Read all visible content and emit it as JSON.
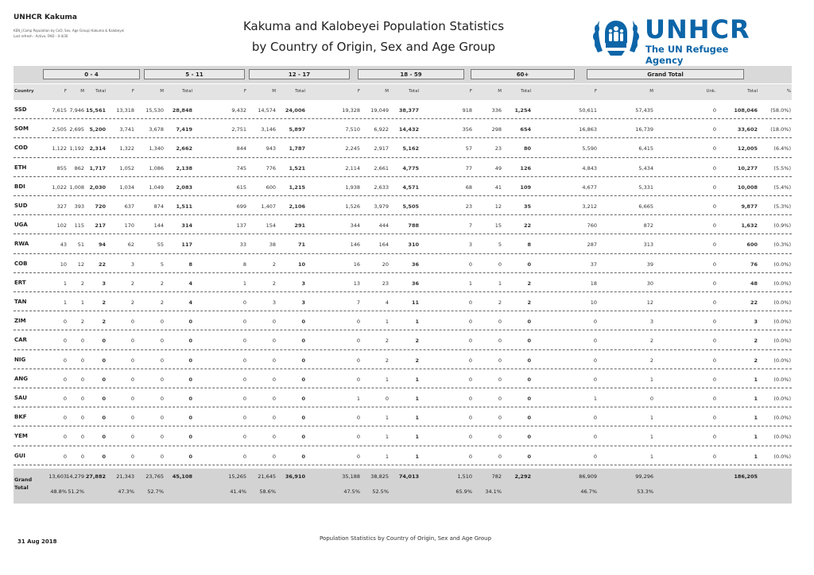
{
  "header": {
    "office": "UNHCR Kakuma",
    "sub_line1": "KEN_(Camp Population by CoO, Sex, Age Group) Kakuma & Kalobeyei",
    "sub_line2": "Last refresh - Active, FAID - 0-4/30",
    "title_line1": "Kakuma and Kalobeyei Population Statistics",
    "title_line2": "by Country of Origin, Sex and Age Group"
  },
  "logo": {
    "word": "UNHCR",
    "tagline": "The UN Refugee Agency",
    "icon": "unhcr-emblem-icon"
  },
  "groups": [
    "0 - 4",
    "5 - 11",
    "12 - 17",
    "18 - 59",
    "60+",
    "Grand Total"
  ],
  "columns": {
    "country": "Country",
    "f": "F",
    "m": "M",
    "total": "Total",
    "unk": "Unk.",
    "pct": "%"
  },
  "rows": [
    {
      "c": "SSD",
      "v": [
        "7,615",
        "7,946",
        "15,561",
        "13,318",
        "15,530",
        "28,848",
        "9,432",
        "14,574",
        "24,006",
        "19,328",
        "19,049",
        "38,377",
        "918",
        "336",
        "1,254",
        "50,611",
        "57,435",
        "0",
        "108,046",
        "(58.0%)"
      ]
    },
    {
      "c": "SOM",
      "v": [
        "2,505",
        "2,695",
        "5,200",
        "3,741",
        "3,678",
        "7,419",
        "2,751",
        "3,146",
        "5,897",
        "7,510",
        "6,922",
        "14,432",
        "356",
        "298",
        "654",
        "16,863",
        "16,739",
        "0",
        "33,602",
        "(18.0%)"
      ]
    },
    {
      "c": "COD",
      "v": [
        "1,122",
        "1,192",
        "2,314",
        "1,322",
        "1,340",
        "2,662",
        "844",
        "943",
        "1,787",
        "2,245",
        "2,917",
        "5,162",
        "57",
        "23",
        "80",
        "5,590",
        "6,415",
        "0",
        "12,005",
        "(6.4%)"
      ]
    },
    {
      "c": "ETH",
      "v": [
        "855",
        "862",
        "1,717",
        "1,052",
        "1,086",
        "2,138",
        "745",
        "776",
        "1,521",
        "2,114",
        "2,661",
        "4,775",
        "77",
        "49",
        "126",
        "4,843",
        "5,434",
        "0",
        "10,277",
        "(5.5%)"
      ]
    },
    {
      "c": "BDI",
      "v": [
        "1,022",
        "1,008",
        "2,030",
        "1,034",
        "1,049",
        "2,083",
        "615",
        "600",
        "1,215",
        "1,938",
        "2,633",
        "4,571",
        "68",
        "41",
        "109",
        "4,677",
        "5,331",
        "0",
        "10,008",
        "(5.4%)"
      ]
    },
    {
      "c": "SUD",
      "v": [
        "327",
        "393",
        "720",
        "637",
        "874",
        "1,511",
        "699",
        "1,407",
        "2,106",
        "1,526",
        "3,979",
        "5,505",
        "23",
        "12",
        "35",
        "3,212",
        "6,665",
        "0",
        "9,877",
        "(5.3%)"
      ]
    },
    {
      "c": "UGA",
      "v": [
        "102",
        "115",
        "217",
        "170",
        "144",
        "314",
        "137",
        "154",
        "291",
        "344",
        "444",
        "788",
        "7",
        "15",
        "22",
        "760",
        "872",
        "0",
        "1,632",
        "(0.9%)"
      ]
    },
    {
      "c": "RWA",
      "v": [
        "43",
        "51",
        "94",
        "62",
        "55",
        "117",
        "33",
        "38",
        "71",
        "146",
        "164",
        "310",
        "3",
        "5",
        "8",
        "287",
        "313",
        "0",
        "600",
        "(0.3%)"
      ]
    },
    {
      "c": "COB",
      "v": [
        "10",
        "12",
        "22",
        "3",
        "5",
        "8",
        "8",
        "2",
        "10",
        "16",
        "20",
        "36",
        "0",
        "0",
        "0",
        "37",
        "39",
        "0",
        "76",
        "(0.0%)"
      ]
    },
    {
      "c": "ERT",
      "v": [
        "1",
        "2",
        "3",
        "2",
        "2",
        "4",
        "1",
        "2",
        "3",
        "13",
        "23",
        "36",
        "1",
        "1",
        "2",
        "18",
        "30",
        "0",
        "48",
        "(0.0%)"
      ]
    },
    {
      "c": "TAN",
      "v": [
        "1",
        "1",
        "2",
        "2",
        "2",
        "4",
        "0",
        "3",
        "3",
        "7",
        "4",
        "11",
        "0",
        "2",
        "2",
        "10",
        "12",
        "0",
        "22",
        "(0.0%)"
      ]
    },
    {
      "c": "ZIM",
      "v": [
        "0",
        "2",
        "2",
        "0",
        "0",
        "0",
        "0",
        "0",
        "0",
        "0",
        "1",
        "1",
        "0",
        "0",
        "0",
        "0",
        "3",
        "0",
        "3",
        "(0.0%)"
      ]
    },
    {
      "c": "CAR",
      "v": [
        "0",
        "0",
        "0",
        "0",
        "0",
        "0",
        "0",
        "0",
        "0",
        "0",
        "2",
        "2",
        "0",
        "0",
        "0",
        "0",
        "2",
        "0",
        "2",
        "(0.0%)"
      ]
    },
    {
      "c": "NIG",
      "v": [
        "0",
        "0",
        "0",
        "0",
        "0",
        "0",
        "0",
        "0",
        "0",
        "0",
        "2",
        "2",
        "0",
        "0",
        "0",
        "0",
        "2",
        "0",
        "2",
        "(0.0%)"
      ]
    },
    {
      "c": "ANG",
      "v": [
        "0",
        "0",
        "0",
        "0",
        "0",
        "0",
        "0",
        "0",
        "0",
        "0",
        "1",
        "1",
        "0",
        "0",
        "0",
        "0",
        "1",
        "0",
        "1",
        "(0.0%)"
      ]
    },
    {
      "c": "SAU",
      "v": [
        "0",
        "0",
        "0",
        "0",
        "0",
        "0",
        "0",
        "0",
        "0",
        "1",
        "0",
        "1",
        "0",
        "0",
        "0",
        "1",
        "0",
        "0",
        "1",
        "(0.0%)"
      ]
    },
    {
      "c": "BKF",
      "v": [
        "0",
        "0",
        "0",
        "0",
        "0",
        "0",
        "0",
        "0",
        "0",
        "0",
        "1",
        "1",
        "0",
        "0",
        "0",
        "0",
        "1",
        "0",
        "1",
        "(0.0%)"
      ]
    },
    {
      "c": "YEM",
      "v": [
        "0",
        "0",
        "0",
        "0",
        "0",
        "0",
        "0",
        "0",
        "0",
        "0",
        "1",
        "1",
        "0",
        "0",
        "0",
        "0",
        "1",
        "0",
        "1",
        "(0.0%)"
      ]
    },
    {
      "c": "GUI",
      "v": [
        "0",
        "0",
        "0",
        "0",
        "0",
        "0",
        "0",
        "0",
        "0",
        "0",
        "1",
        "1",
        "0",
        "0",
        "0",
        "0",
        "1",
        "0",
        "1",
        "(0.0%)"
      ]
    }
  ],
  "grand_total": {
    "label1": "Grand",
    "label2": "Total",
    "values": [
      "13,603",
      "14,279",
      "27,882",
      "21,343",
      "23,765",
      "45,108",
      "15,265",
      "21,645",
      "36,910",
      "35,188",
      "38,825",
      "74,013",
      "1,510",
      "782",
      "2,292",
      "86,909",
      "99,296",
      "",
      "186,205",
      ""
    ],
    "pcts": [
      "48.8%",
      "51.2%",
      "",
      "47.3%",
      "52.7%",
      "",
      "41.4%",
      "58.6%",
      "",
      "47.5%",
      "52.5%",
      "",
      "65.9%",
      "34.1%",
      "",
      "46.7%",
      "53.3%",
      "",
      "",
      ""
    ]
  },
  "footer": {
    "date": "31 Aug 2018",
    "center": "Population Statistics by Country of Origin, Sex and Age Group"
  }
}
